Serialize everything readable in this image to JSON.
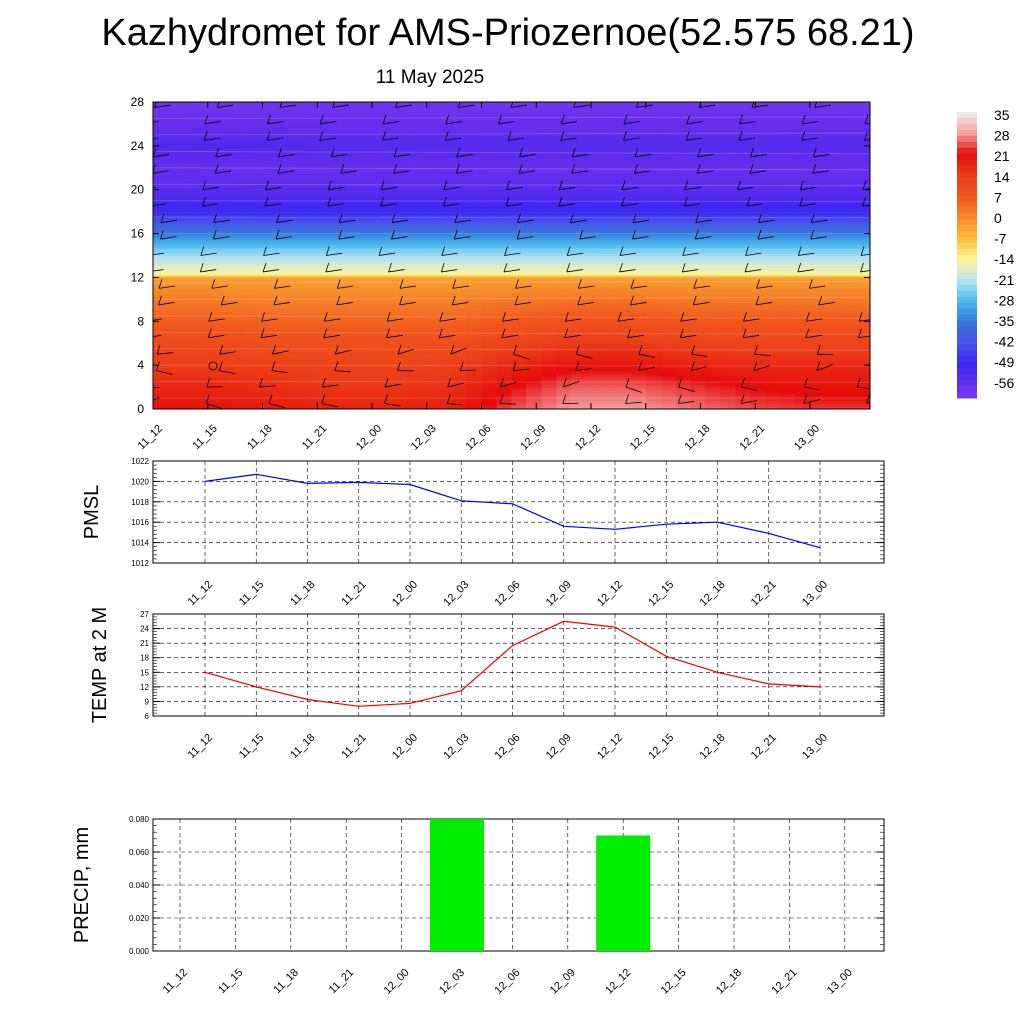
{
  "header": {
    "title": "Kazhydromet for AMS-Priozernoe(52.575 68.21)",
    "date": "11 May 2025"
  },
  "colorbar": {
    "labels": [
      "35",
      "28",
      "21",
      "14",
      "7",
      "0",
      "-7",
      "-14",
      "-21",
      "-28",
      "-35",
      "-42",
      "-49",
      "-56"
    ],
    "colors": [
      "#eeeeee",
      "#f4a0a0",
      "#ea3b3b",
      "#e60b0b",
      "#f0551e",
      "#f78a2c",
      "#fbbd3a",
      "#fff59a",
      "#b8e3f0",
      "#47baf0",
      "#3a74d8",
      "#5367e0",
      "#3c2ff0",
      "#7a3cf0"
    ]
  },
  "chart_data": [
    {
      "type": "heatmap",
      "title": "",
      "xlabel": "",
      "ylabel": "",
      "x": [
        "11_12",
        "11_15",
        "11_18",
        "11_21",
        "12_00",
        "12_03",
        "12_06",
        "12_09",
        "12_12",
        "12_15",
        "12_18",
        "12_21",
        "13_00"
      ],
      "y_ticks": [
        0,
        4,
        8,
        12,
        16,
        20,
        24,
        28
      ],
      "ylim": [
        0,
        28
      ],
      "zlim": [
        -56,
        35
      ],
      "levels": [
        {
          "y": 0,
          "v": [
            20,
            20,
            19,
            18,
            18,
            18,
            24,
            28,
            28,
            26,
            24,
            23,
            23
          ]
        },
        {
          "y": 2,
          "v": [
            17,
            17,
            16,
            15,
            15,
            16,
            21,
            25,
            25,
            23,
            21,
            20,
            20
          ]
        },
        {
          "y": 4,
          "v": [
            14,
            14,
            13,
            12,
            12,
            13,
            17,
            20,
            20,
            18,
            17,
            17,
            17
          ]
        },
        {
          "y": 6,
          "v": [
            10,
            10,
            9,
            9,
            9,
            9,
            12,
            14,
            14,
            13,
            12,
            12,
            12
          ]
        },
        {
          "y": 8,
          "v": [
            6,
            6,
            5,
            5,
            5,
            5,
            7,
            8,
            8,
            7,
            7,
            7,
            7
          ]
        },
        {
          "y": 10,
          "v": [
            2,
            2,
            1,
            1,
            1,
            1,
            2,
            3,
            3,
            2,
            2,
            2,
            2
          ]
        },
        {
          "y": 12,
          "v": [
            -3,
            -3,
            -3,
            -3,
            -3,
            -3,
            -3,
            -3,
            -3,
            -3,
            -3,
            -3,
            -3
          ]
        },
        {
          "y": 12.3,
          "v": [
            -14,
            -14,
            -14,
            -14,
            -14,
            -14,
            -14,
            -14,
            -14,
            -14,
            -14,
            -14,
            -14
          ]
        },
        {
          "y": 14,
          "v": [
            -22,
            -22,
            -22,
            -22,
            -22,
            -22,
            -22,
            -22,
            -22,
            -22,
            -22,
            -22,
            -22
          ]
        },
        {
          "y": 16,
          "v": [
            -34,
            -34,
            -34,
            -34,
            -34,
            -34,
            -34,
            -34,
            -34,
            -34,
            -34,
            -34,
            -34
          ]
        },
        {
          "y": 18,
          "v": [
            -48,
            -48,
            -48,
            -48,
            -48,
            -48,
            -48,
            -48,
            -48,
            -48,
            -48,
            -48,
            -48
          ]
        },
        {
          "y": 20,
          "v": [
            -54,
            -54,
            -54,
            -54,
            -54,
            -54,
            -54,
            -54,
            -54,
            -54,
            -54,
            -54,
            -54
          ]
        },
        {
          "y": 22,
          "v": [
            -56,
            -56,
            -56,
            -56,
            -56,
            -56,
            -56,
            -56,
            -56,
            -56,
            -56,
            -56,
            -56
          ]
        },
        {
          "y": 24,
          "v": [
            -52,
            -52,
            -52,
            -53,
            -53,
            -53,
            -53,
            -53,
            -53,
            -53,
            -53,
            -53,
            -53
          ]
        },
        {
          "y": 26,
          "v": [
            -56,
            -56,
            -56,
            -56,
            -56,
            -56,
            -56,
            -56,
            -56,
            -56,
            -56,
            -56,
            -56
          ]
        },
        {
          "y": 28,
          "v": [
            -58,
            -58,
            -58,
            -58,
            -58,
            -58,
            -58,
            -58,
            -58,
            -58,
            -58,
            -58,
            -58
          ]
        }
      ]
    },
    {
      "type": "line",
      "title": "",
      "xlabel": "",
      "ylabel": "PMSL",
      "x": [
        "11_12",
        "11_15",
        "11_18",
        "11_21",
        "12_00",
        "12_03",
        "12_06",
        "12_09",
        "12_12",
        "12_15",
        "12_18",
        "12_21",
        "13_00"
      ],
      "series": [
        {
          "values": [
            1020.0,
            1020.7,
            1019.8,
            1019.9,
            1019.7,
            1018.1,
            1017.8,
            1015.6,
            1015.3,
            1015.8,
            1016.0,
            1014.9,
            1013.5
          ],
          "color": "#0000ee"
        }
      ],
      "yticks": [
        1012,
        1014,
        1016,
        1018,
        1020,
        1022
      ],
      "ylim": [
        1012,
        1022
      ],
      "grid": true
    },
    {
      "type": "line",
      "title": "",
      "xlabel": "",
      "ylabel": "TEMP at 2 M",
      "x": [
        "11_12",
        "11_15",
        "11_18",
        "11_21",
        "12_00",
        "12_03",
        "12_06",
        "12_09",
        "12_12",
        "12_15",
        "12_18",
        "12_21",
        "13_00"
      ],
      "series": [
        {
          "values": [
            15.0,
            12.0,
            9.4,
            8.0,
            8.6,
            11.2,
            20.5,
            25.5,
            24.3,
            18.3,
            15.0,
            12.6,
            12.0
          ],
          "color": "#ee0000"
        }
      ],
      "yticks": [
        6,
        9,
        12,
        15,
        18,
        21,
        24,
        27
      ],
      "ylim": [
        6,
        27
      ],
      "grid": true
    },
    {
      "type": "bar",
      "title": "",
      "xlabel": "",
      "ylabel": "PRECIP, mm",
      "categories": [
        "11_12",
        "11_15",
        "11_18",
        "11_21",
        "12_00",
        "12_03",
        "12_06",
        "12_09",
        "12_12",
        "12_15",
        "12_18",
        "12_21",
        "13_00"
      ],
      "values": [
        0,
        0,
        0,
        0,
        0,
        0.08,
        0,
        0,
        0.07,
        0,
        0,
        0,
        0
      ],
      "yticks": [
        "0.000",
        "0.020",
        "0.040",
        "0.060",
        "0.080"
      ],
      "ylim": [
        0,
        0.08
      ],
      "color": "#00ee00",
      "grid": true
    }
  ]
}
